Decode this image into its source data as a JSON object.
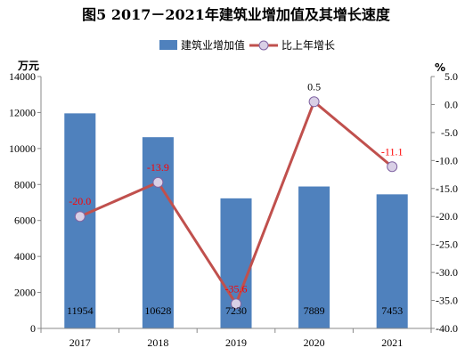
{
  "chart_data": {
    "type": "bar",
    "title": "图5  2017－2021年建筑业增加值及其增长速度",
    "categories": [
      "2017",
      "2018",
      "2019",
      "2020",
      "2021"
    ],
    "series": [
      {
        "name": "建筑业增加值",
        "type": "bar",
        "axis": "left",
        "color": "#4F81BD",
        "values": [
          11954,
          10628,
          7230,
          7889,
          7453
        ]
      },
      {
        "name": "比上年增长",
        "type": "line",
        "axis": "right",
        "color": "#C0504D",
        "marker_fill": "#D9D0E6",
        "values": [
          -20.0,
          -13.9,
          -35.6,
          0.5,
          -11.1
        ]
      }
    ],
    "bar_labels": [
      "11954",
      "10628",
      "7230",
      "7889",
      "7453"
    ],
    "line_labels": [
      "-20.0",
      "-13.9",
      "-35.6",
      "0.5",
      "-11.1"
    ],
    "line_label_colors": [
      "#FF0000",
      "#FF0000",
      "#FF0000",
      "#000000",
      "#FF0000"
    ],
    "y_left": {
      "unit": "万元",
      "ylim": [
        0,
        14000
      ],
      "ticks": [
        "0",
        "2000",
        "4000",
        "6000",
        "8000",
        "10000",
        "12000",
        "14000"
      ]
    },
    "y_right": {
      "unit": "%",
      "ylim": [
        -40,
        5
      ],
      "ticks": [
        "5.0",
        "0.0",
        "-5.0",
        "-10.0",
        "-15.0",
        "-20.0",
        "-25.0",
        "-30.0",
        "-35.0",
        "-40.0"
      ]
    },
    "grid": false,
    "legend_position": "top-center"
  }
}
